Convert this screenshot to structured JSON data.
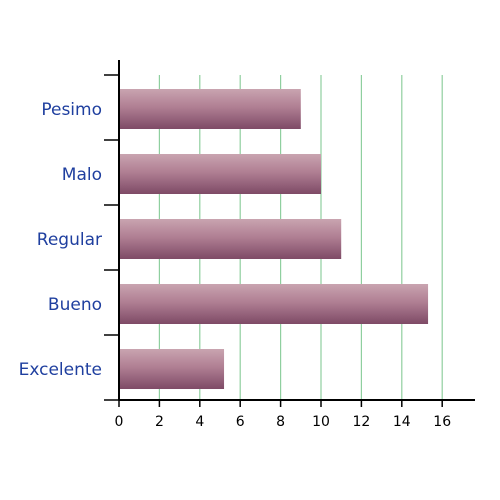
{
  "chart_data": {
    "type": "bar",
    "orientation": "horizontal",
    "categories": [
      "Pesimo",
      "Malo",
      "Regular",
      "Bueno",
      "Excelente"
    ],
    "values": [
      9,
      10,
      11,
      15.3,
      5.2
    ],
    "xlim": [
      0,
      17
    ],
    "xticks": [
      "0",
      "2",
      "4",
      "6",
      "8",
      "10",
      "12",
      "14",
      "16"
    ],
    "grid": "vertical",
    "colors": {
      "bar_top": "#c9a4b0",
      "bar_mid": "#b07f93",
      "bar_bottom": "#7e4a66",
      "grid": "#8fcf9f",
      "category_text": "#1f3f9f",
      "axis": "#000000"
    }
  }
}
